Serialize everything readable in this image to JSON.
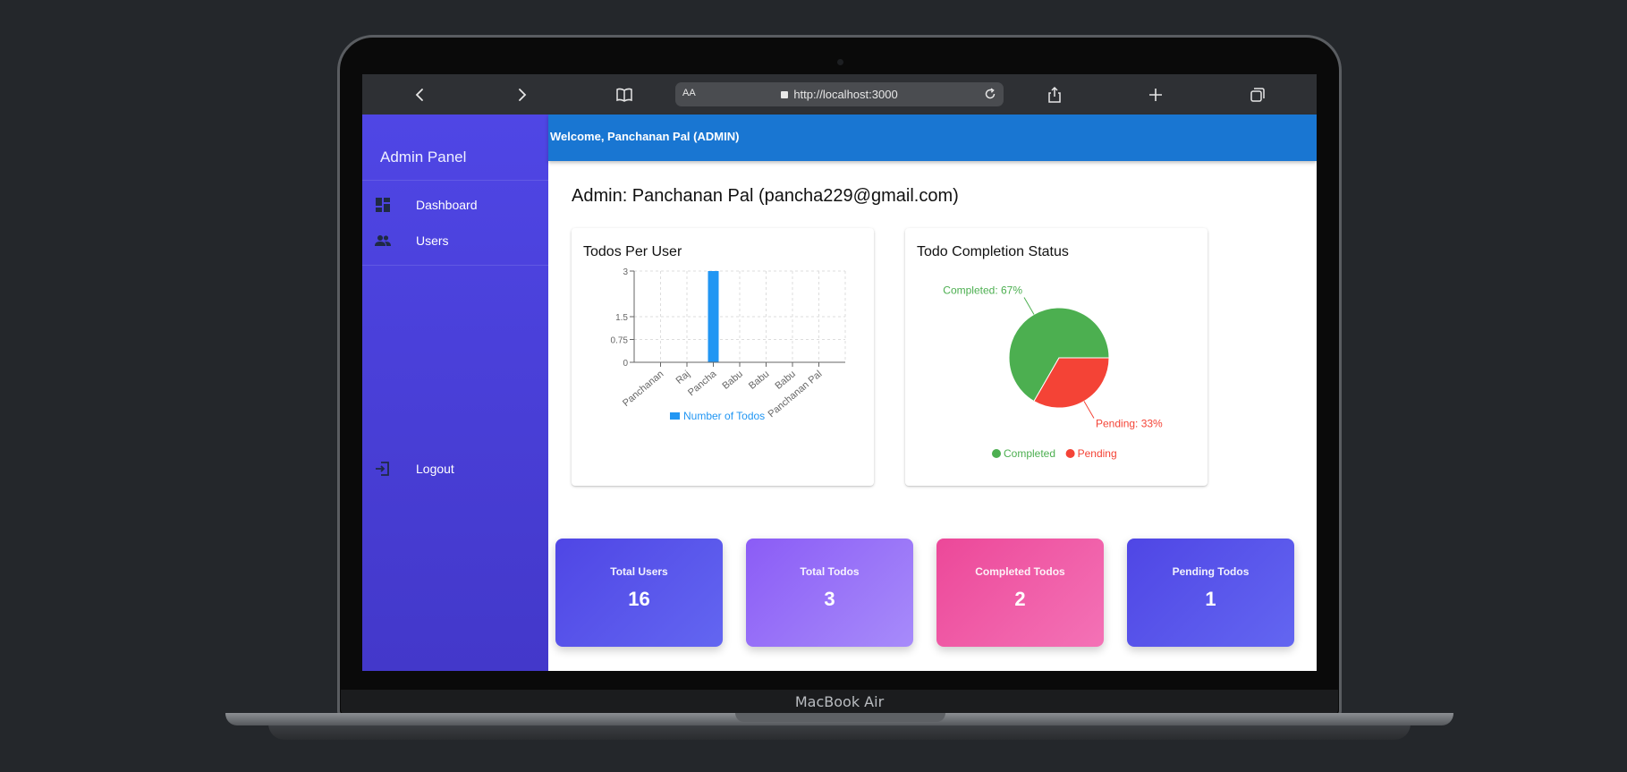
{
  "device": {
    "label": "MacBook Air"
  },
  "browser": {
    "url_aa": "AA",
    "url": "http://localhost:3000"
  },
  "sidebar": {
    "title": "Admin Panel",
    "items": [
      {
        "label": "Dashboard",
        "icon": "dashboard-icon"
      },
      {
        "label": "Users",
        "icon": "users-icon"
      }
    ],
    "logout": {
      "label": "Logout",
      "icon": "logout-icon"
    }
  },
  "header": {
    "welcome": "Welcome, Panchanan Pal (ADMIN)"
  },
  "page": {
    "title": "Admin: Panchanan Pal (pancha229@gmail.com)"
  },
  "bar_card": {
    "title": "Todos Per User"
  },
  "pie_card": {
    "title": "Todo Completion Status"
  },
  "chart_data": [
    {
      "type": "bar",
      "title": "Todos Per User",
      "categories": [
        "Panchanan",
        "Raj",
        "Pancha",
        "Babu",
        "Babu",
        "Babu",
        "Panchanan Pal"
      ],
      "series": [
        {
          "name": "Number of Todos",
          "values": [
            0,
            0,
            3,
            0,
            0,
            0,
            0
          ]
        }
      ],
      "yticks": [
        "3",
        "1.5",
        "0.75",
        "0"
      ],
      "ylim": [
        0,
        3
      ],
      "grid": true,
      "legend_position": "bottom",
      "colors": {
        "bar": "#2196f3"
      }
    },
    {
      "type": "pie",
      "title": "Todo Completion Status",
      "slices": [
        {
          "name": "Completed",
          "value": 2,
          "label": "Completed: 67%",
          "color": "#4caf50"
        },
        {
          "name": "Pending",
          "value": 1,
          "label": "Pending: 33%",
          "color": "#f44336"
        }
      ],
      "legend_position": "bottom"
    }
  ],
  "stats": [
    {
      "label": "Total Users",
      "value": "16"
    },
    {
      "label": "Total Todos",
      "value": "3"
    },
    {
      "label": "Completed Todos",
      "value": "2"
    },
    {
      "label": "Pending Todos",
      "value": "1"
    }
  ]
}
